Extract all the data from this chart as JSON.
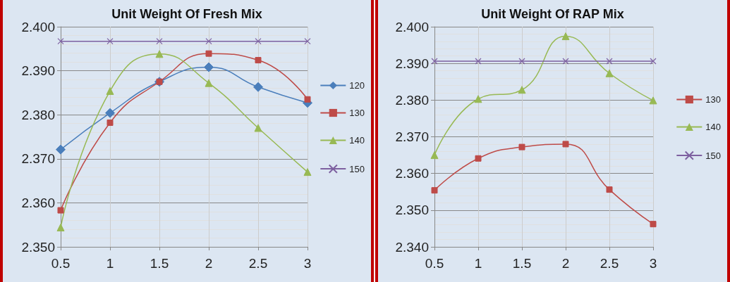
{
  "chart_data": [
    {
      "type": "line",
      "title": "Unit Weight Of Fresh Mix",
      "categories": [
        "0.5",
        "1",
        "1.5",
        "2",
        "2.5",
        "3"
      ],
      "ylim": [
        2.35,
        2.4
      ],
      "yticks": [
        {
          "value": 2.35,
          "label": "2.350"
        },
        {
          "value": 2.36,
          "label": "2.360"
        },
        {
          "value": 2.37,
          "label": "2.370"
        },
        {
          "value": 2.38,
          "label": "2.380"
        },
        {
          "value": 2.39,
          "label": "2.390"
        },
        {
          "value": 2.4,
          "label": "2.400"
        }
      ],
      "grid": true,
      "legend": "right",
      "series": [
        {
          "name": "120",
          "color": "#4a7ebb",
          "marker": "diamond",
          "values": [
            2.3721,
            2.3804,
            2.3875,
            2.3908,
            2.3863,
            2.3827
          ]
        },
        {
          "name": "130",
          "color": "#be4b48",
          "marker": "square",
          "values": [
            2.3583,
            2.3782,
            2.3875,
            2.3939,
            2.3924,
            2.3835
          ]
        },
        {
          "name": "140",
          "color": "#98b954",
          "marker": "triangle",
          "values": [
            2.3544,
            2.3854,
            2.3938,
            2.3872,
            2.377,
            2.367
          ]
        },
        {
          "name": "150",
          "color": "#7d60a0",
          "marker": "cross",
          "values": [
            2.3967,
            2.3967,
            2.3967,
            2.3967,
            2.3967,
            2.3967
          ]
        }
      ]
    },
    {
      "type": "line",
      "title": "Unit Weight Of RAP Mix",
      "categories": [
        "0.5",
        "1",
        "1.5",
        "2",
        "2.5",
        "3"
      ],
      "ylim": [
        2.34,
        2.4
      ],
      "yticks": [
        {
          "value": 2.34,
          "label": "2.340"
        },
        {
          "value": 2.35,
          "label": "2.350"
        },
        {
          "value": 2.36,
          "label": "2.360"
        },
        {
          "value": 2.37,
          "label": "2.370"
        },
        {
          "value": 2.38,
          "label": "2.380"
        },
        {
          "value": 2.39,
          "label": "2.390"
        },
        {
          "value": 2.4,
          "label": "2.400"
        }
      ],
      "grid": true,
      "legend": "right",
      "series": [
        {
          "name": "130",
          "color": "#be4b48",
          "marker": "square",
          "values": [
            2.3554,
            2.3641,
            2.3672,
            2.368,
            2.3556,
            2.3462
          ]
        },
        {
          "name": "140",
          "color": "#98b954",
          "marker": "triangle",
          "values": [
            2.365,
            2.3803,
            2.3828,
            2.3974,
            2.3873,
            2.3799
          ]
        },
        {
          "name": "150",
          "color": "#7d60a0",
          "marker": "cross",
          "values": [
            2.3906,
            2.3906,
            2.3906,
            2.3906,
            2.3906,
            2.3906
          ]
        }
      ]
    }
  ]
}
